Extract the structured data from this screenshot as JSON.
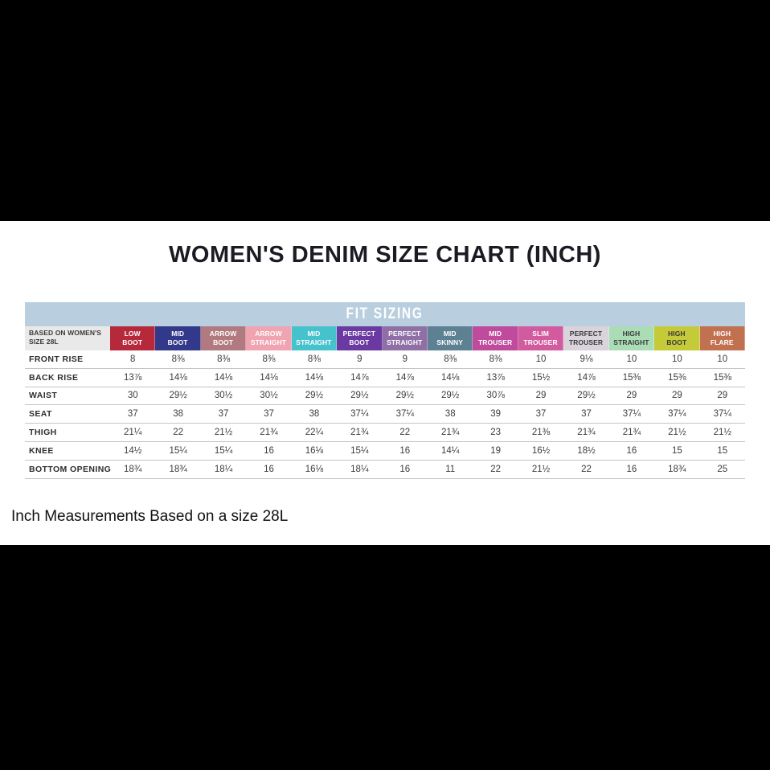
{
  "ui": {
    "title": "WOMEN'S DENIM SIZE CHART (INCH)",
    "banner_label": "FIT SIZING",
    "corner_label_line1": "BASED ON WOMEN'S",
    "corner_label_line2": "SIZE 28L",
    "footer_note": "Inch Measurements Based on a size 28L"
  },
  "colors": {
    "letterbox": "#000000",
    "page_bg": "#ffffff",
    "banner_bg": "#b9cede",
    "banner_text": "#ffffff",
    "corner_bg": "#e9e9e9",
    "row_line": "#c4c4c4",
    "value_text": "#3c3c3c",
    "title_text": "#1b1b23"
  },
  "columns": [
    {
      "lines": [
        "LOW",
        "BOOT"
      ],
      "bg": "#b5293a",
      "fg": "#ffffff"
    },
    {
      "lines": [
        "MID",
        "BOOT"
      ],
      "bg": "#32398a",
      "fg": "#ffffff"
    },
    {
      "lines": [
        "ARROW",
        "BOOT"
      ],
      "bg": "#b17a80",
      "fg": "#ffffff"
    },
    {
      "lines": [
        "ARROW",
        "STRAIGHT"
      ],
      "bg": "#f0a3b0",
      "fg": "#ffffff"
    },
    {
      "lines": [
        "MID",
        "STRAIGHT"
      ],
      "bg": "#45c2cb",
      "fg": "#ffffff"
    },
    {
      "lines": [
        "PERFECT",
        "BOOT"
      ],
      "bg": "#6a3aa2",
      "fg": "#ffffff"
    },
    {
      "lines": [
        "PERFECT",
        "STRAIGHT"
      ],
      "bg": "#8f6fa6",
      "fg": "#ffffff"
    },
    {
      "lines": [
        "MID",
        "SKINNY"
      ],
      "bg": "#5d8193",
      "fg": "#ffffff"
    },
    {
      "lines": [
        "MID",
        "TROUSER"
      ],
      "bg": "#c04a9b",
      "fg": "#ffffff"
    },
    {
      "lines": [
        "SLIM",
        "TROUSER"
      ],
      "bg": "#d25a9e",
      "fg": "#ffffff"
    },
    {
      "lines": [
        "PERFECT",
        "TROUSER"
      ],
      "bg": "#d9d3dc",
      "fg": "#3a3a3a"
    },
    {
      "lines": [
        "HIGH",
        "STRAIGHT"
      ],
      "bg": "#aadcb5",
      "fg": "#3a3a3a"
    },
    {
      "lines": [
        "HIGH",
        "BOOT"
      ],
      "bg": "#c5ca39",
      "fg": "#3a3a3a"
    },
    {
      "lines": [
        "HIGH",
        "FLARE"
      ],
      "bg": "#c27150",
      "fg": "#ffffff"
    }
  ],
  "chart_data": {
    "type": "table",
    "title": "WOMEN'S DENIM SIZE CHART (INCH)",
    "group_header": "FIT SIZING",
    "based_on": "BASED ON WOMEN'S SIZE 28L",
    "categories": [
      "LOW BOOT",
      "MID BOOT",
      "ARROW BOOT",
      "ARROW STRAIGHT",
      "MID STRAIGHT",
      "PERFECT BOOT",
      "PERFECT STRAIGHT",
      "MID SKINNY",
      "MID TROUSER",
      "SLIM TROUSER",
      "PERFECT TROUSER",
      "HIGH STRAIGHT",
      "HIGH BOOT",
      "HIGH FLARE"
    ],
    "rows": [
      {
        "name": "FRONT RISE",
        "values": [
          "8",
          "8⅜",
          "8⅜",
          "8⅜",
          "8⅜",
          "9",
          "9",
          "8⅜",
          "8⅜",
          "10",
          "9⅛",
          "10",
          "10",
          "10"
        ]
      },
      {
        "name": "BACK RISE",
        "values": [
          "13⅞",
          "14⅛",
          "14⅛",
          "14⅛",
          "14⅛",
          "14⅞",
          "14⅞",
          "14⅛",
          "13⅞",
          "15½",
          "14⅞",
          "15⅜",
          "15⅜",
          "15⅜"
        ]
      },
      {
        "name": "WAIST",
        "values": [
          "30",
          "29½",
          "30½",
          "30½",
          "29½",
          "29½",
          "29½",
          "29½",
          "30⅞",
          "29",
          "29½",
          "29",
          "29",
          "29"
        ]
      },
      {
        "name": "SEAT",
        "values": [
          "37",
          "38",
          "37",
          "37",
          "38",
          "37¼",
          "37¼",
          "38",
          "39",
          "37",
          "37",
          "37¼",
          "37¼",
          "37¼"
        ]
      },
      {
        "name": "THIGH",
        "values": [
          "21¼",
          "22",
          "21½",
          "21¾",
          "22¼",
          "21¾",
          "22",
          "21¾",
          "23",
          "21⅜",
          "21¾",
          "21¾",
          "21½",
          "21½"
        ]
      },
      {
        "name": "KNEE",
        "values": [
          "14½",
          "15¼",
          "15¼",
          "16",
          "16⅛",
          "15¼",
          "16",
          "14¼",
          "19",
          "16½",
          "18½",
          "16",
          "15",
          "15"
        ]
      },
      {
        "name": "BOTTOM OPENING",
        "values": [
          "18¾",
          "18¾",
          "18¼",
          "16",
          "16⅛",
          "18¼",
          "16",
          "11",
          "22",
          "21½",
          "22",
          "16",
          "18¾",
          "25"
        ]
      }
    ],
    "note": "Inch Measurements Based on a size 28L"
  }
}
